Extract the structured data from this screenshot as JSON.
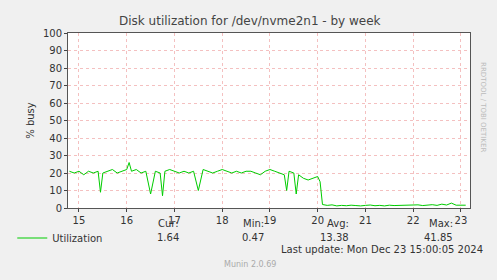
{
  "chart_data": {
    "type": "line",
    "title": "Disk utilization for /dev/nvme2n1 - by week",
    "y_label": "% busy",
    "x": [
      14.8,
      14.9,
      15.0,
      15.1,
      15.2,
      15.3,
      15.4,
      15.45,
      15.5,
      15.6,
      15.7,
      15.8,
      15.9,
      16.0,
      16.05,
      16.1,
      16.2,
      16.3,
      16.4,
      16.5,
      16.6,
      16.7,
      16.75,
      16.8,
      16.9,
      17.0,
      17.1,
      17.2,
      17.3,
      17.4,
      17.5,
      17.6,
      17.7,
      17.8,
      17.9,
      18.0,
      18.1,
      18.2,
      18.3,
      18.4,
      18.5,
      18.6,
      18.7,
      18.8,
      18.9,
      19.0,
      19.1,
      19.2,
      19.3,
      19.35,
      19.4,
      19.5,
      19.55,
      19.6,
      19.7,
      19.8,
      19.9,
      20.0,
      20.05,
      20.1,
      20.2,
      20.3,
      20.4,
      20.5,
      20.6,
      20.7,
      20.8,
      20.9,
      21.0,
      21.1,
      21.2,
      21.3,
      21.4,
      21.5,
      21.6,
      21.7,
      21.8,
      21.9,
      22.0,
      22.1,
      22.2,
      22.3,
      22.4,
      22.5,
      22.6,
      22.7,
      22.8,
      22.9,
      23.0,
      23.1
    ],
    "series": [
      {
        "name": "Utilization",
        "color": "#00cc00",
        "values": [
          21,
          20,
          21,
          19,
          21,
          20,
          21,
          9,
          20,
          21,
          22,
          20,
          21,
          22,
          26,
          21,
          22,
          20,
          21,
          8,
          21,
          20,
          7,
          21,
          22,
          21,
          20,
          21,
          20,
          21,
          10,
          22,
          21,
          20,
          21,
          22,
          21,
          20,
          21,
          20,
          21,
          21,
          20,
          19,
          21,
          22,
          21,
          20,
          19,
          10,
          21,
          20,
          8,
          19,
          17,
          16,
          17,
          18,
          15,
          2,
          1.5,
          1.8,
          1.2,
          1.5,
          1.3,
          1.6,
          1.4,
          1.2,
          1.5,
          1.7,
          1.3,
          1.5,
          1.2,
          1.6,
          1.4,
          1.5,
          1.3,
          1.6,
          1.5,
          1.8,
          1.4,
          1.6,
          1.9,
          1.5,
          2.2,
          1.7,
          2.8,
          1.6,
          1.8,
          1.6
        ]
      }
    ],
    "xlim": [
      14.77,
      23.19
    ],
    "xticks": [
      15,
      16,
      17,
      18,
      19,
      20,
      21,
      22,
      23
    ],
    "ylim": [
      0,
      100
    ],
    "yticks": [
      0,
      10,
      20,
      30,
      40,
      50,
      60,
      70,
      80,
      90,
      100
    ],
    "grid": true,
    "legend": "bottom left",
    "stats": [
      {
        "label": "Cur:",
        "value": 1.64
      },
      {
        "label": "Min:",
        "value": 0.47
      },
      {
        "label": "Avg:",
        "value": 13.38
      },
      {
        "label": "Max:",
        "value": 41.85
      }
    ],
    "last_update": "Last update: Mon Dec 23 15:00:05 2024",
    "footer": "Munin 2.0.69",
    "side_text": "RRDTOOL / TOBI OETIKER"
  }
}
